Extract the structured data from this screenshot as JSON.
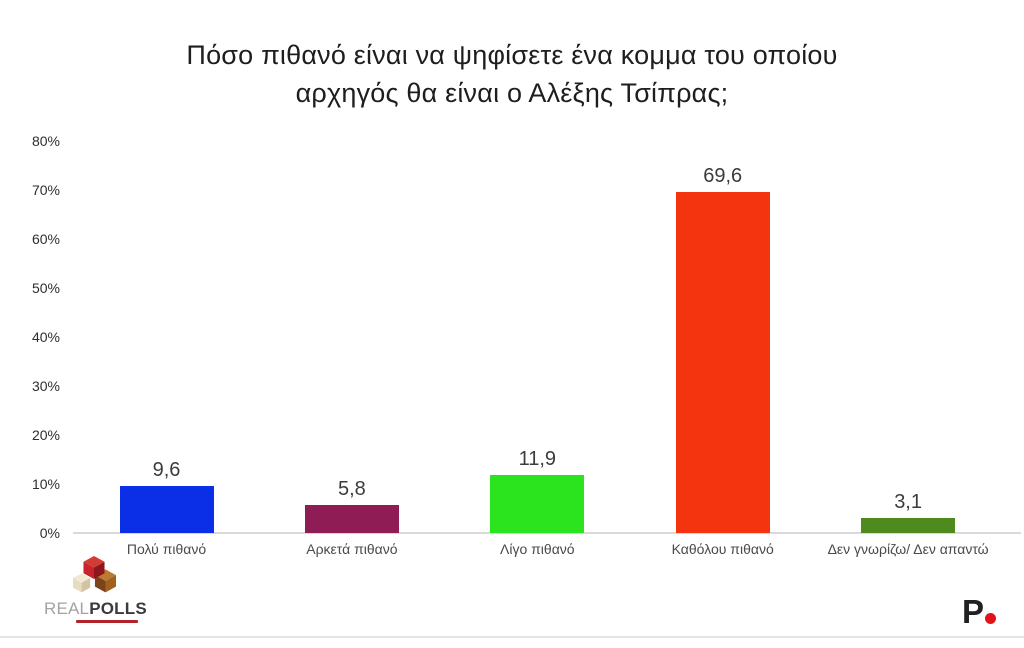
{
  "header": {
    "title_line1": "Πόσο πιθανό είναι να ψηφίσετε ένα κομμα του οποίου",
    "title_line2": "αρχηγός θα είναι ο Αλέξης Τσίπρας;"
  },
  "chart_data": {
    "type": "bar",
    "title": "Πόσο πιθανό είναι να ψηφίσετε ένα κομμα του οποίου αρχηγός θα είναι ο Αλέξης Τσίπρας;",
    "categories": [
      "Πολύ πιθανό",
      "Αρκετά πιθανό",
      "Λίγο πιθανό",
      "Καθόλου πιθανό",
      "Δεν γνωρίζω/ Δεν απαντώ"
    ],
    "values": [
      9.6,
      5.8,
      11.9,
      69.6,
      3.1
    ],
    "value_labels": [
      "9,6",
      "5,8",
      "11,9",
      "69,6",
      "3,1"
    ],
    "bar_colors": [
      "#0a2fe6",
      "#8f1c55",
      "#2ce41e",
      "#f4330f",
      "#4f8a1e"
    ],
    "xlabel": "",
    "ylabel": "",
    "ylim": [
      0,
      80
    ],
    "ytick_step": 10,
    "ytick_labels": [
      "0%",
      "10%",
      "20%",
      "30%",
      "40%",
      "50%",
      "60%",
      "70%",
      "80%"
    ],
    "grid": false,
    "legend": "none",
    "axis_line_color": "#d9d9d9"
  },
  "footer": {
    "realpolls": {
      "wordmark_light": "REAL",
      "wordmark_bold": "POLLS",
      "cube_colors": {
        "red_top": "#d43b35",
        "red_left": "#c8232a",
        "red_right": "#8e161c",
        "brown_top": "#b97a33",
        "brown_left": "#7b431a",
        "brown_right": "#a2601f",
        "cream_top": "#f1e9d4",
        "cream_left": "#e7dcc2",
        "cream_right": "#d3c3a2"
      },
      "tagline_color": "#b3242a"
    },
    "publisher": {
      "letter": "P",
      "dot_color": "#e4131a"
    }
  }
}
